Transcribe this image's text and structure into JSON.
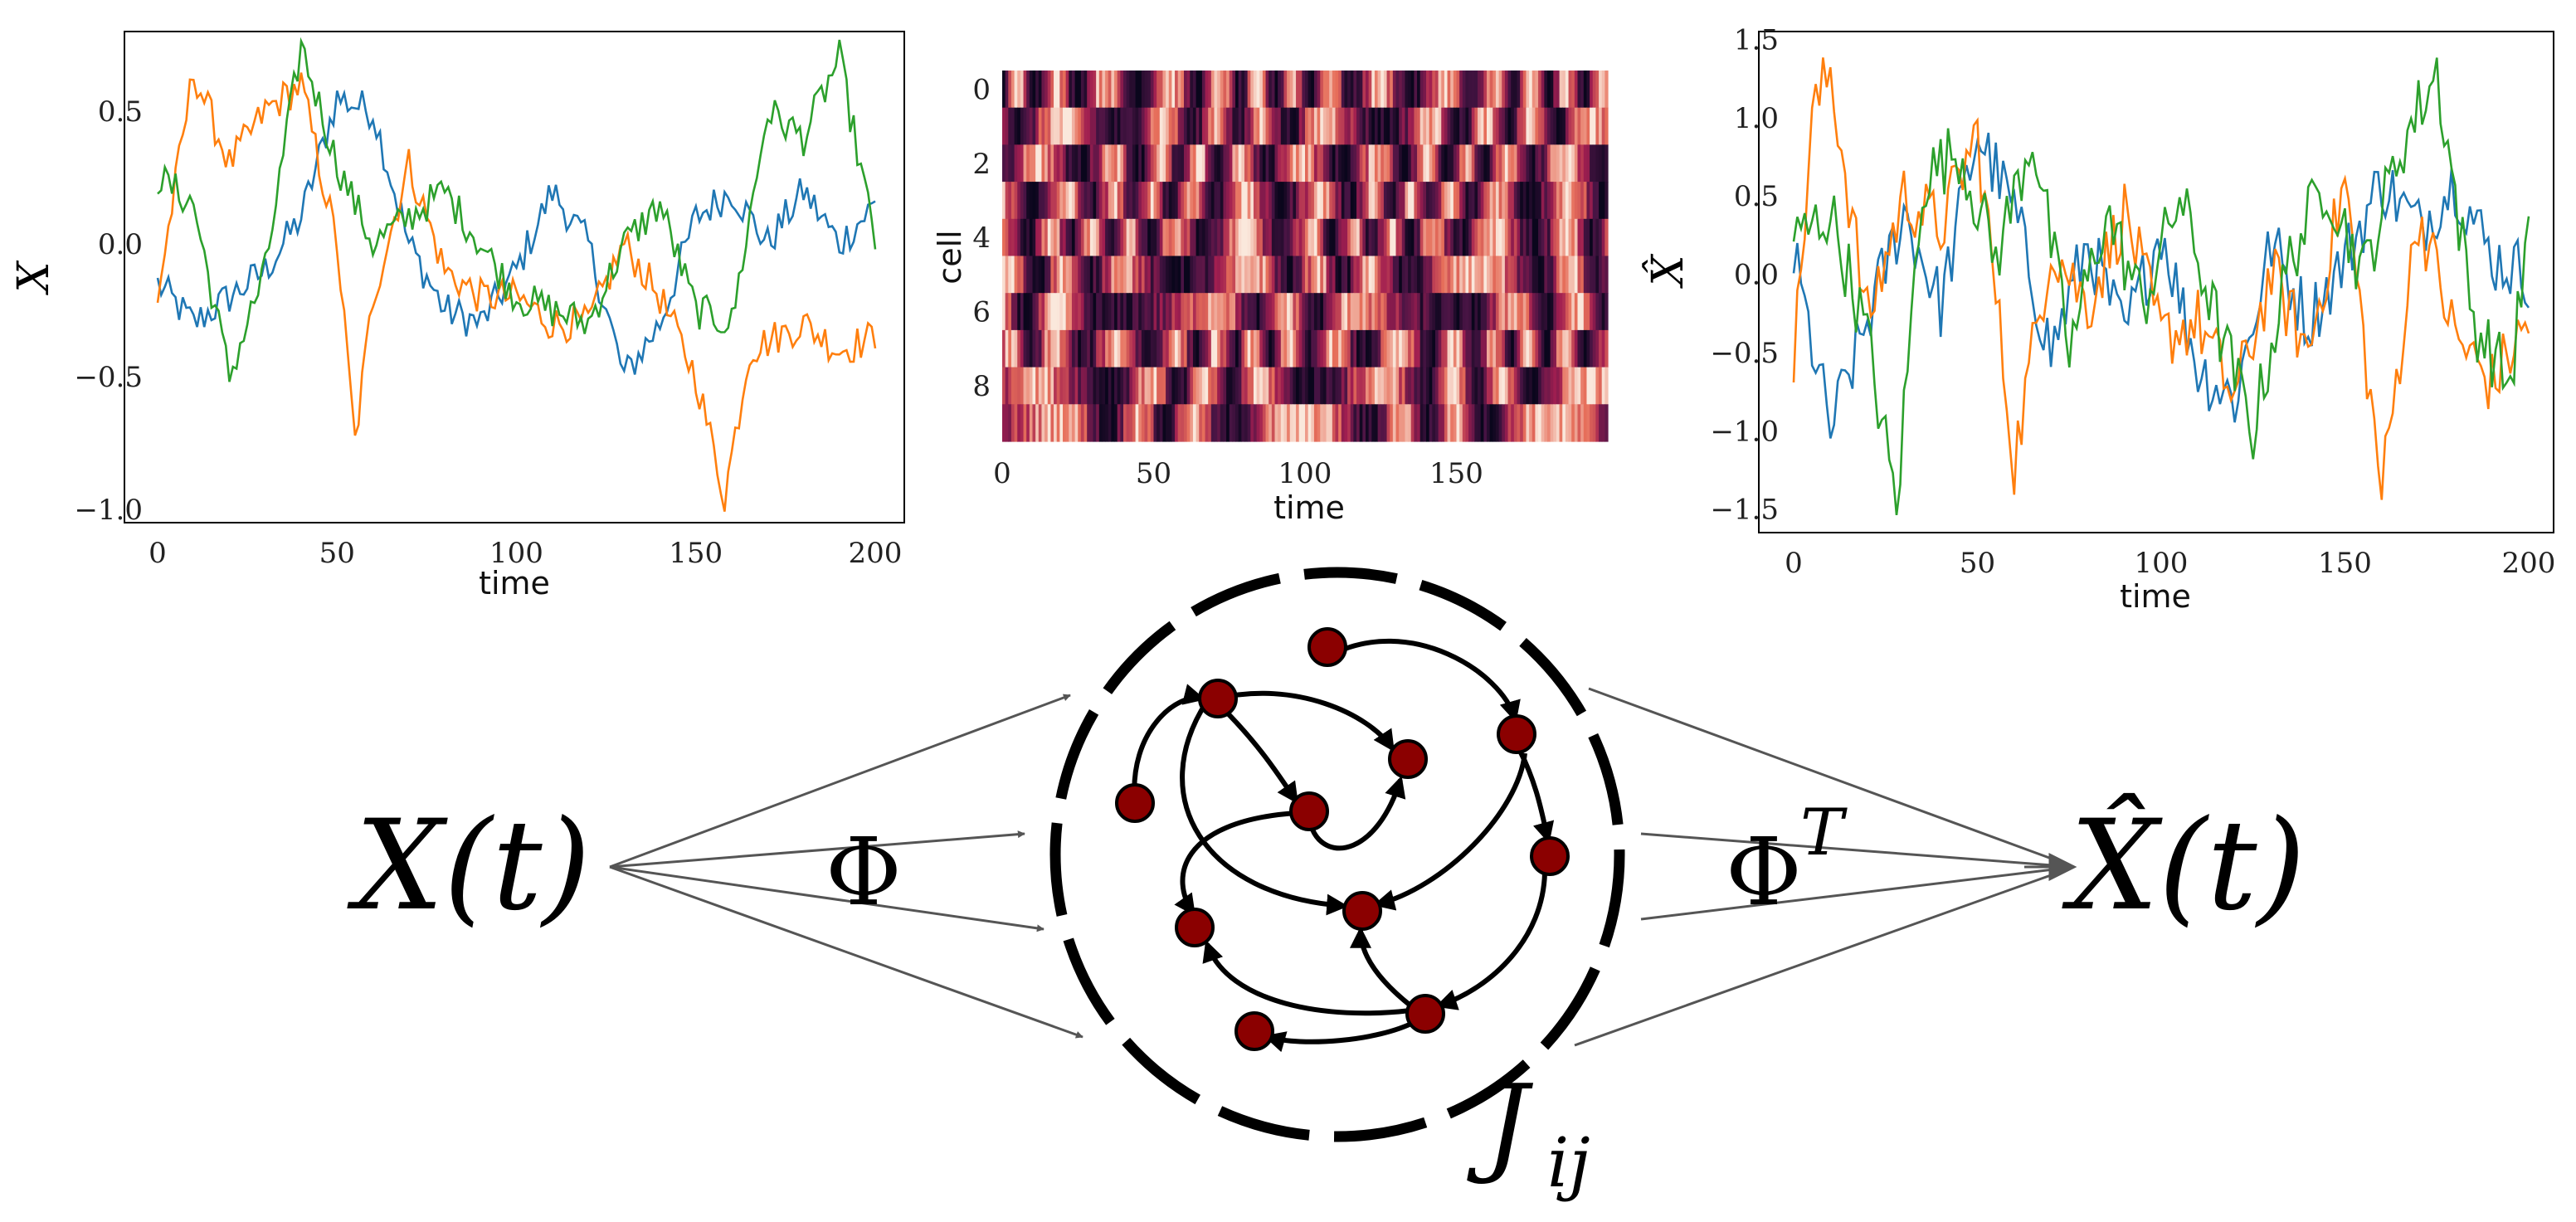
{
  "colors": {
    "series": [
      "#1f77b4",
      "#ff7f0e",
      "#2ca02c"
    ],
    "node_fill": "#8b0000",
    "arrow": "#555555",
    "ring": "#000000"
  },
  "chart_data": [
    {
      "type": "line",
      "ylabel": "X",
      "xlabel": "time",
      "x_ticks": [
        "0",
        "50",
        "100",
        "150",
        "200"
      ],
      "y_ticks": [
        "0.5",
        "0.0",
        "−0.5",
        "−1.0"
      ],
      "xlim": [
        0,
        200
      ],
      "ylim": [
        -1.05,
        0.8
      ],
      "grid": false,
      "series": [
        {
          "color": "#1f77b4",
          "points": [
            [
              0,
              -0.15
            ],
            [
              10,
              -0.3
            ],
            [
              20,
              -0.2
            ],
            [
              30,
              -0.1
            ],
            [
              40,
              0.1
            ],
            [
              50,
              0.55
            ],
            [
              60,
              0.5
            ],
            [
              70,
              0.0
            ],
            [
              80,
              -0.25
            ],
            [
              90,
              -0.3
            ],
            [
              100,
              -0.1
            ],
            [
              110,
              0.2
            ],
            [
              120,
              0.0
            ],
            [
              130,
              -0.5
            ],
            [
              140,
              -0.3
            ],
            [
              150,
              0.1
            ],
            [
              160,
              0.2
            ],
            [
              170,
              0.0
            ],
            [
              180,
              0.2
            ],
            [
              190,
              0.0
            ],
            [
              200,
              0.15
            ]
          ]
        },
        {
          "color": "#ff7f0e",
          "points": [
            [
              0,
              -0.2
            ],
            [
              10,
              0.65
            ],
            [
              20,
              0.3
            ],
            [
              30,
              0.5
            ],
            [
              40,
              0.6
            ],
            [
              50,
              0.0
            ],
            [
              55,
              -0.75
            ],
            [
              60,
              -0.2
            ],
            [
              70,
              0.3
            ],
            [
              80,
              -0.1
            ],
            [
              90,
              -0.2
            ],
            [
              100,
              -0.2
            ],
            [
              110,
              -0.3
            ],
            [
              120,
              -0.3
            ],
            [
              130,
              0.0
            ],
            [
              140,
              -0.2
            ],
            [
              150,
              -0.5
            ],
            [
              158,
              -0.95
            ],
            [
              165,
              -0.4
            ],
            [
              180,
              -0.3
            ],
            [
              190,
              -0.4
            ],
            [
              200,
              -0.35
            ]
          ]
        },
        {
          "color": "#2ca02c",
          "points": [
            [
              0,
              0.25
            ],
            [
              10,
              0.15
            ],
            [
              20,
              -0.5
            ],
            [
              30,
              -0.1
            ],
            [
              40,
              0.75
            ],
            [
              50,
              0.3
            ],
            [
              60,
              0.0
            ],
            [
              70,
              0.1
            ],
            [
              80,
              0.2
            ],
            [
              90,
              0.0
            ],
            [
              100,
              -0.2
            ],
            [
              110,
              -0.25
            ],
            [
              120,
              -0.3
            ],
            [
              130,
              0.0
            ],
            [
              140,
              0.15
            ],
            [
              150,
              -0.25
            ],
            [
              160,
              -0.3
            ],
            [
              170,
              0.5
            ],
            [
              180,
              0.4
            ],
            [
              190,
              0.7
            ],
            [
              200,
              0.0
            ]
          ]
        }
      ]
    },
    {
      "type": "heatmap",
      "ylabel": "cell",
      "xlabel": "time",
      "x_ticks": [
        "0",
        "50",
        "100",
        "150"
      ],
      "y_ticks": [
        "0",
        "2",
        "4",
        "6",
        "8"
      ],
      "rows": 10,
      "cols": 200,
      "colormap": "rocket-like"
    },
    {
      "type": "line",
      "ylabel": "X̂",
      "xlabel": "time",
      "x_ticks": [
        "0",
        "50",
        "100",
        "150",
        "200"
      ],
      "y_ticks": [
        "1.5",
        "1.0",
        "0.5",
        "0.0",
        "−0.5",
        "−1.0",
        "−1.5"
      ],
      "xlim": [
        0,
        200
      ],
      "ylim": [
        -1.65,
        1.55
      ],
      "grid": false,
      "series": [
        {
          "color": "#1f77b4",
          "points": [
            [
              0,
              0.1
            ],
            [
              10,
              -1.0
            ],
            [
              20,
              -0.3
            ],
            [
              30,
              0.4
            ],
            [
              40,
              -0.2
            ],
            [
              50,
              0.9
            ],
            [
              60,
              0.4
            ],
            [
              70,
              -0.5
            ],
            [
              80,
              0.2
            ],
            [
              90,
              -0.4
            ],
            [
              100,
              0.3
            ],
            [
              110,
              -0.6
            ],
            [
              120,
              -0.8
            ],
            [
              130,
              0.2
            ],
            [
              140,
              -0.3
            ],
            [
              150,
              0.1
            ],
            [
              160,
              0.6
            ],
            [
              170,
              0.3
            ],
            [
              180,
              0.6
            ],
            [
              190,
              0.1
            ],
            [
              200,
              0.0
            ]
          ]
        },
        {
          "color": "#ff7f0e",
          "points": [
            [
              0,
              -0.6
            ],
            [
              5,
              1.0
            ],
            [
              10,
              1.3
            ],
            [
              20,
              -0.3
            ],
            [
              30,
              0.5
            ],
            [
              40,
              0.3
            ],
            [
              50,
              0.9
            ],
            [
              60,
              -1.2
            ],
            [
              70,
              0.2
            ],
            [
              80,
              -0.2
            ],
            [
              90,
              0.4
            ],
            [
              100,
              -0.4
            ],
            [
              110,
              -0.3
            ],
            [
              120,
              -0.8
            ],
            [
              130,
              0.0
            ],
            [
              140,
              -0.5
            ],
            [
              150,
              0.6
            ],
            [
              160,
              -1.4
            ],
            [
              170,
              0.4
            ],
            [
              180,
              -0.4
            ],
            [
              190,
              -0.7
            ],
            [
              200,
              -0.3
            ]
          ]
        },
        {
          "color": "#2ca02c",
          "points": [
            [
              0,
              0.2
            ],
            [
              10,
              0.4
            ],
            [
              20,
              -0.4
            ],
            [
              28,
              -1.5
            ],
            [
              35,
              0.6
            ],
            [
              45,
              0.8
            ],
            [
              55,
              0.1
            ],
            [
              65,
              0.9
            ],
            [
              75,
              -0.5
            ],
            [
              85,
              0.4
            ],
            [
              95,
              -0.2
            ],
            [
              105,
              0.5
            ],
            [
              115,
              -0.3
            ],
            [
              125,
              -1.0
            ],
            [
              135,
              0.1
            ],
            [
              145,
              0.6
            ],
            [
              155,
              0.0
            ],
            [
              165,
              0.8
            ],
            [
              175,
              1.3
            ],
            [
              185,
              -0.3
            ],
            [
              195,
              -0.7
            ],
            [
              200,
              0.3
            ]
          ]
        }
      ]
    }
  ],
  "diagram": {
    "input_label": "X(t)",
    "phi_label": "Φ",
    "phi_t_label": "Φ",
    "phi_t_superscript": "T",
    "output_label": "X̂(t)",
    "coupling_label": "J",
    "coupling_subscript": "ij"
  }
}
